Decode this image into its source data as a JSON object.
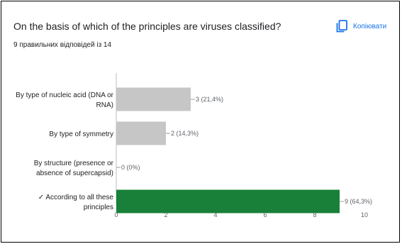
{
  "header": {
    "title": "On the basis of which of the principles are viruses classified?",
    "subtitle": "9 правильних відповідей із 14",
    "copy_label": "Копіювати",
    "copy_icon": "copy-icon"
  },
  "colors": {
    "bar_default": "#c6c6c6",
    "bar_correct": "#188038",
    "accent": "#1a73e8",
    "axis": "#bdbdbd"
  },
  "chart_data": {
    "type": "bar",
    "orientation": "horizontal",
    "categories": [
      [
        "By type of nucleic acid (DNA or",
        "RNA)"
      ],
      [
        "By type of symmetry"
      ],
      [
        "By structure (presence or",
        "absence of supercapsid)"
      ],
      [
        "✓ According to all these",
        "principles"
      ]
    ],
    "values": [
      3,
      2,
      0,
      9
    ],
    "data_labels": [
      "3 (21,4%)",
      "2 (14,3%)",
      "0 (0%)",
      "9 (64,3%)"
    ],
    "correct": [
      false,
      false,
      false,
      true
    ],
    "xlim": [
      0,
      10
    ],
    "xticks": [
      0,
      2,
      4,
      6,
      8,
      10
    ],
    "grid": false
  }
}
